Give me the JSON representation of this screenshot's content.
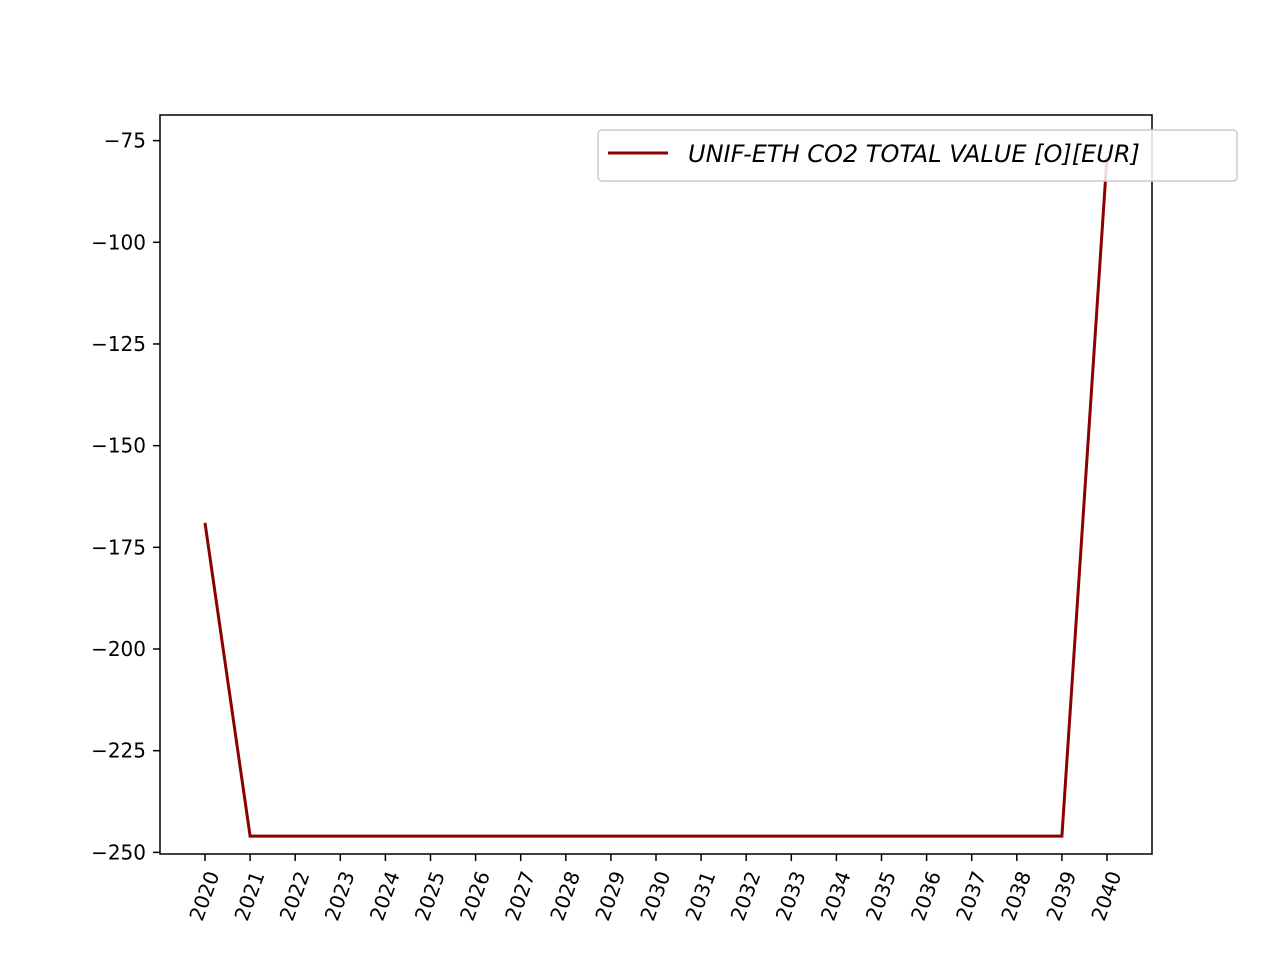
{
  "chart_data": {
    "type": "line",
    "title": "",
    "xlabel": "",
    "ylabel": "",
    "x": [
      "2020",
      "2021",
      "2022",
      "2023",
      "2024",
      "2025",
      "2026",
      "2027",
      "2028",
      "2029",
      "2030",
      "2031",
      "2032",
      "2033",
      "2034",
      "2035",
      "2036",
      "2037",
      "2038",
      "2039",
      "2040"
    ],
    "series": [
      {
        "name": "UNIF-ETH CO2 TOTAL VALUE [O][EUR]",
        "color": "#8b0000",
        "values": [
          -169,
          -246,
          -246,
          -246,
          -246,
          -246,
          -246,
          -246,
          -246,
          -246,
          -246,
          -246,
          -246,
          -246,
          -246,
          -246,
          -246,
          -246,
          -246,
          -246,
          -79
        ]
      }
    ],
    "ylim": [
      -250.4,
      -68.7
    ],
    "yticks": [
      -75,
      -100,
      -125,
      -150,
      -175,
      -200,
      -225,
      -250
    ],
    "ytick_labels": [
      "−75",
      "−100",
      "−125",
      "−150",
      "−175",
      "−200",
      "−225",
      "−250"
    ],
    "grid": false,
    "legend_position": "top-right",
    "xtick_rotation": "70 degrees"
  }
}
